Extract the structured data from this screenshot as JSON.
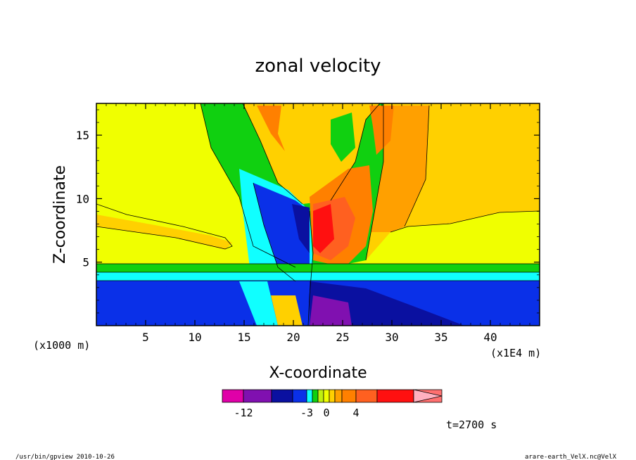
{
  "chart_data": {
    "type": "heatmap",
    "title": "zonal velocity",
    "xlabel": "X-coordinate",
    "ylabel": "Z-coordinate",
    "x_unit": "(x1E4 m)",
    "y_unit": "(x1000 m)",
    "xlim": [
      0,
      45
    ],
    "ylim": [
      0,
      17.5
    ],
    "x_ticks": [
      5,
      10,
      15,
      20,
      25,
      30,
      35,
      40
    ],
    "y_ticks": [
      5,
      10,
      15
    ],
    "timestamp": "t=2700 s",
    "colorbar": {
      "labels": [
        {
          "text": "-12",
          "value": -12
        },
        {
          "text": "-3",
          "value": -3
        },
        {
          "text": "0",
          "value": 0
        },
        {
          "text": "4",
          "value": 4
        }
      ],
      "levels": [
        {
          "color": "#e000a8"
        },
        {
          "color": "#8010b0"
        },
        {
          "color": "#0a10a0"
        },
        {
          "color": "#0a30e8"
        },
        {
          "color": "#10ffff"
        },
        {
          "color": "#10d010"
        },
        {
          "color": "#c0f010"
        },
        {
          "color": "#f0ff00"
        },
        {
          "color": "#ffd000"
        },
        {
          "color": "#ffa000"
        },
        {
          "color": "#ff8000"
        },
        {
          "color": "#ff6020"
        },
        {
          "color": "#ff1010"
        },
        {
          "color": "#ff7070"
        },
        {
          "color": "#ffb0c0"
        }
      ]
    }
  },
  "footer": {
    "left": "/usr/bin/gpview  2010-10-26",
    "right": "arare-earth_VelX.nc@VelX"
  }
}
